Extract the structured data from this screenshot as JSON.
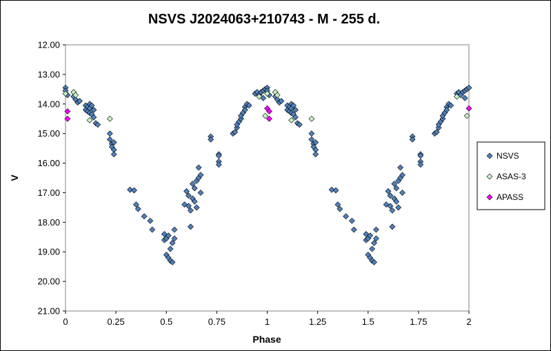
{
  "chart_data": {
    "type": "scatter",
    "title": "NSVS J2024063+210743  - M - 255 d.",
    "xlabel": "Phase",
    "ylabel": "V",
    "xlim": [
      0,
      2
    ],
    "ylim": [
      12,
      21
    ],
    "y_inverted": true,
    "x_ticks": [
      0,
      0.25,
      0.5,
      0.75,
      1,
      1.25,
      1.5,
      1.75,
      2
    ],
    "x_tick_labels": [
      "0",
      "0.25",
      "0.5",
      "0.75",
      "1",
      "1.25",
      "1.5",
      "1.75",
      "2"
    ],
    "y_ticks": [
      12,
      13,
      14,
      15,
      16,
      17,
      18,
      19,
      20,
      21
    ],
    "y_tick_labels": [
      "12.00",
      "13.00",
      "14.00",
      "15.00",
      "16.00",
      "17.00",
      "18.00",
      "19.00",
      "20.00",
      "21.00"
    ],
    "grid": false,
    "legend_position": "right",
    "series": [
      {
        "name": "NSVS",
        "color": "#4f81bd",
        "marker": "diamond",
        "points": [
          [
            0.0,
            13.45
          ],
          [
            0.0,
            13.55
          ],
          [
            0.01,
            13.7
          ],
          [
            0.04,
            13.75
          ],
          [
            0.05,
            13.85
          ],
          [
            0.06,
            13.95
          ],
          [
            0.07,
            13.9
          ],
          [
            0.1,
            14.05
          ],
          [
            0.1,
            14.2
          ],
          [
            0.11,
            14.1
          ],
          [
            0.11,
            14.25
          ],
          [
            0.12,
            14.0
          ],
          [
            0.12,
            14.15
          ],
          [
            0.12,
            14.3
          ],
          [
            0.13,
            14.05
          ],
          [
            0.13,
            14.35
          ],
          [
            0.14,
            14.2
          ],
          [
            0.14,
            14.45
          ],
          [
            0.15,
            14.65
          ],
          [
            0.16,
            14.7
          ],
          [
            0.22,
            15.0
          ],
          [
            0.22,
            15.2
          ],
          [
            0.23,
            15.35
          ],
          [
            0.23,
            15.45
          ],
          [
            0.24,
            15.3
          ],
          [
            0.24,
            15.55
          ],
          [
            0.24,
            15.7
          ],
          [
            0.32,
            16.9
          ],
          [
            0.34,
            16.92
          ],
          [
            0.35,
            17.4
          ],
          [
            0.36,
            17.55
          ],
          [
            0.39,
            17.8
          ],
          [
            0.42,
            17.95
          ],
          [
            0.43,
            18.25
          ],
          [
            0.49,
            18.4
          ],
          [
            0.49,
            18.6
          ],
          [
            0.5,
            18.55
          ],
          [
            0.5,
            19.1
          ],
          [
            0.51,
            19.2
          ],
          [
            0.51,
            18.45
          ],
          [
            0.52,
            19.3
          ],
          [
            0.52,
            18.9
          ],
          [
            0.53,
            19.35
          ],
          [
            0.53,
            18.7
          ],
          [
            0.54,
            18.55
          ],
          [
            0.54,
            18.25
          ],
          [
            0.59,
            17.4
          ],
          [
            0.6,
            16.95
          ],
          [
            0.61,
            17.1
          ],
          [
            0.61,
            17.45
          ],
          [
            0.62,
            17.6
          ],
          [
            0.62,
            18.15
          ],
          [
            0.63,
            17.2
          ],
          [
            0.63,
            16.7
          ],
          [
            0.64,
            17.3
          ],
          [
            0.64,
            16.85
          ],
          [
            0.65,
            17.5
          ],
          [
            0.65,
            16.6
          ],
          [
            0.66,
            16.5
          ],
          [
            0.66,
            16.15
          ],
          [
            0.67,
            17.0
          ],
          [
            0.67,
            16.4
          ],
          [
            0.72,
            15.1
          ],
          [
            0.72,
            15.2
          ],
          [
            0.76,
            15.7
          ],
          [
            0.76,
            15.75
          ],
          [
            0.76,
            15.95
          ],
          [
            0.76,
            16.05
          ],
          [
            0.83,
            15.0
          ],
          [
            0.84,
            14.95
          ],
          [
            0.85,
            14.8
          ],
          [
            0.85,
            14.7
          ],
          [
            0.86,
            14.6
          ],
          [
            0.87,
            14.5
          ],
          [
            0.87,
            14.4
          ],
          [
            0.88,
            14.3
          ],
          [
            0.89,
            14.1
          ],
          [
            0.89,
            14.2
          ],
          [
            0.9,
            14.0
          ],
          [
            0.91,
            14.05
          ],
          [
            0.94,
            13.65
          ],
          [
            0.95,
            13.6
          ],
          [
            0.96,
            13.7
          ],
          [
            0.97,
            13.6
          ],
          [
            0.98,
            13.55
          ],
          [
            0.98,
            13.8
          ],
          [
            0.99,
            13.5
          ],
          [
            1.0,
            13.45
          ],
          [
            1.0,
            13.55
          ],
          [
            1.01,
            13.7
          ],
          [
            1.04,
            13.75
          ],
          [
            1.05,
            13.85
          ],
          [
            1.06,
            13.95
          ],
          [
            1.07,
            13.9
          ],
          [
            1.1,
            14.05
          ],
          [
            1.1,
            14.2
          ],
          [
            1.11,
            14.1
          ],
          [
            1.11,
            14.25
          ],
          [
            1.12,
            14.0
          ],
          [
            1.12,
            14.15
          ],
          [
            1.12,
            14.3
          ],
          [
            1.13,
            14.05
          ],
          [
            1.13,
            14.35
          ],
          [
            1.14,
            14.2
          ],
          [
            1.14,
            14.45
          ],
          [
            1.15,
            14.65
          ],
          [
            1.16,
            14.7
          ],
          [
            1.22,
            15.0
          ],
          [
            1.22,
            15.2
          ],
          [
            1.23,
            15.35
          ],
          [
            1.23,
            15.45
          ],
          [
            1.24,
            15.3
          ],
          [
            1.24,
            15.55
          ],
          [
            1.24,
            15.7
          ],
          [
            1.32,
            16.9
          ],
          [
            1.34,
            16.92
          ],
          [
            1.35,
            17.4
          ],
          [
            1.36,
            17.55
          ],
          [
            1.39,
            17.8
          ],
          [
            1.42,
            17.95
          ],
          [
            1.43,
            18.25
          ],
          [
            1.49,
            18.4
          ],
          [
            1.49,
            18.6
          ],
          [
            1.5,
            18.55
          ],
          [
            1.5,
            19.1
          ],
          [
            1.51,
            19.2
          ],
          [
            1.51,
            18.45
          ],
          [
            1.52,
            19.3
          ],
          [
            1.52,
            18.9
          ],
          [
            1.53,
            19.35
          ],
          [
            1.53,
            18.7
          ],
          [
            1.54,
            18.55
          ],
          [
            1.54,
            18.25
          ],
          [
            1.59,
            17.4
          ],
          [
            1.6,
            16.95
          ],
          [
            1.61,
            17.1
          ],
          [
            1.61,
            17.45
          ],
          [
            1.62,
            17.6
          ],
          [
            1.62,
            18.15
          ],
          [
            1.63,
            17.2
          ],
          [
            1.63,
            16.7
          ],
          [
            1.64,
            17.3
          ],
          [
            1.64,
            16.85
          ],
          [
            1.65,
            17.5
          ],
          [
            1.65,
            16.6
          ],
          [
            1.66,
            16.5
          ],
          [
            1.66,
            16.15
          ],
          [
            1.67,
            17.0
          ],
          [
            1.67,
            16.4
          ],
          [
            1.72,
            15.1
          ],
          [
            1.72,
            15.2
          ],
          [
            1.76,
            15.7
          ],
          [
            1.76,
            15.75
          ],
          [
            1.76,
            15.95
          ],
          [
            1.76,
            16.05
          ],
          [
            1.83,
            15.0
          ],
          [
            1.84,
            14.95
          ],
          [
            1.85,
            14.8
          ],
          [
            1.85,
            14.7
          ],
          [
            1.86,
            14.6
          ],
          [
            1.87,
            14.5
          ],
          [
            1.87,
            14.4
          ],
          [
            1.88,
            14.3
          ],
          [
            1.89,
            14.1
          ],
          [
            1.89,
            14.2
          ],
          [
            1.9,
            14.0
          ],
          [
            1.91,
            14.05
          ],
          [
            1.94,
            13.65
          ],
          [
            1.95,
            13.6
          ],
          [
            1.96,
            13.7
          ],
          [
            1.97,
            13.6
          ],
          [
            1.98,
            13.55
          ],
          [
            1.98,
            13.8
          ],
          [
            1.99,
            13.5
          ],
          [
            2.0,
            13.45
          ]
        ]
      },
      {
        "name": "ASAS-3",
        "color": "#c6efc6",
        "marker": "diamond",
        "points": [
          [
            0.0,
            13.65
          ],
          [
            0.04,
            13.6
          ],
          [
            0.05,
            13.7
          ],
          [
            0.12,
            14.55
          ],
          [
            0.22,
            14.5
          ],
          [
            0.96,
            13.75
          ],
          [
            0.99,
            14.4
          ],
          [
            1.0,
            13.65
          ],
          [
            1.04,
            13.6
          ],
          [
            1.05,
            13.7
          ],
          [
            1.12,
            14.55
          ],
          [
            1.22,
            14.5
          ],
          [
            1.94,
            13.75
          ],
          [
            1.99,
            14.4
          ]
        ]
      },
      {
        "name": "APASS",
        "color": "#ff00ff",
        "marker": "diamond",
        "points": [
          [
            0.01,
            14.25
          ],
          [
            0.01,
            14.5
          ],
          [
            1.0,
            14.15
          ],
          [
            1.01,
            14.25
          ],
          [
            1.01,
            14.5
          ],
          [
            2.0,
            14.15
          ]
        ]
      }
    ]
  }
}
